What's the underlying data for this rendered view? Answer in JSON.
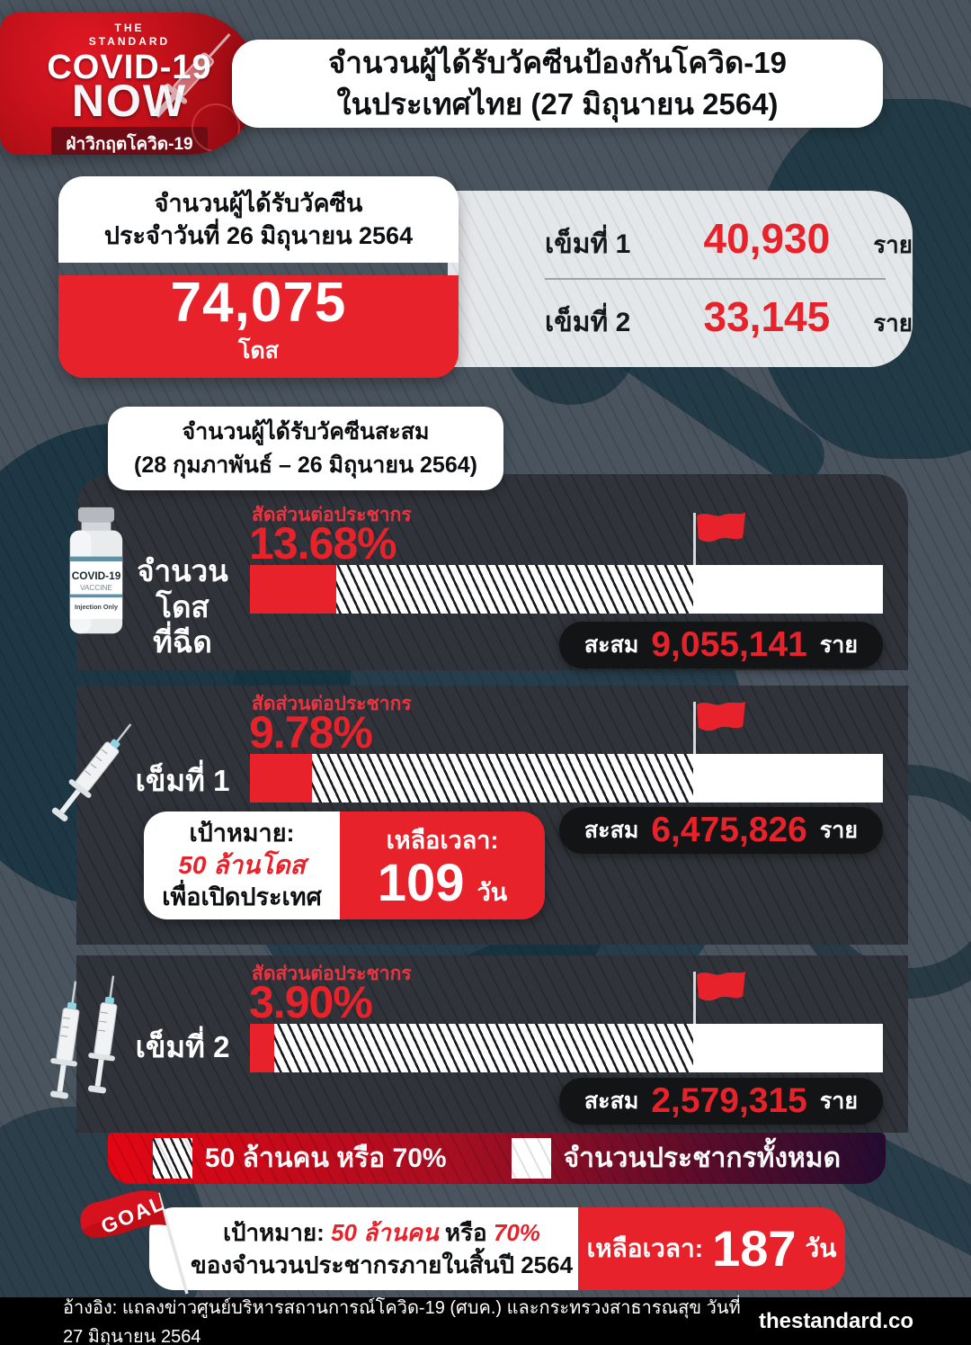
{
  "header": {
    "logo": {
      "brand_the": "THE",
      "brand_standard": "STANDARD",
      "covid": "COVID-19",
      "now": "NOW",
      "tagline": "ฝ่าวิกฤตโควิด-19"
    },
    "title_line1": "จำนวนผู้ได้รับวัคซีนป้องกันโควิด-19",
    "title_line2": "ในประเทศไทย (27 มิถุนายน 2564)"
  },
  "daily": {
    "card_title_line1": "จำนวนผู้ได้รับวัคซีน",
    "card_title_line2": "ประจำวันที่ 26 มิถุนายน 2564",
    "total_value": "74,075",
    "total_unit": "โดส",
    "doses": [
      {
        "label": "เข็มที่ 1",
        "value": "40,930",
        "unit": "ราย"
      },
      {
        "label": "เข็มที่ 2",
        "value": "33,145",
        "unit": "ราย"
      }
    ]
  },
  "cumulative": {
    "title_line1": "จำนวนผู้ได้รับวัคซีนสะสม",
    "title_line2": "(28 กุมภาพันธ์ – 26 มิถุนายน 2564)",
    "ratio_label": "สัดส่วนต่อประชากร",
    "flag_position_percent": 70,
    "rows": [
      {
        "label_line1": "จำนวนโดส",
        "label_line2": "ที่ฉีด",
        "percent_text": "13.68%",
        "percent_value": 13.68,
        "cumulative_label": "สะสม",
        "cumulative_value": "9,055,141",
        "unit": "ราย"
      },
      {
        "label_line1": "เข็มที่ 1",
        "label_line2": "",
        "percent_text": "9.78%",
        "percent_value": 9.78,
        "cumulative_label": "สะสม",
        "cumulative_value": "6,475,826",
        "unit": "ราย"
      },
      {
        "label_line1": "เข็มที่ 2",
        "label_line2": "",
        "percent_text": "3.90%",
        "percent_value": 3.9,
        "cumulative_label": "สะสม",
        "cumulative_value": "2,579,315",
        "unit": "ราย"
      }
    ],
    "goal_box": {
      "heading": "เป้าหมาย:",
      "target": "50 ล้านโดส",
      "purpose": "เพื่อเปิดประเทศ",
      "time_label": "เหลือเวลา:",
      "days": "109",
      "days_unit": "วัน"
    }
  },
  "legend": {
    "hatched_label": "50 ล้านคน หรือ 70%",
    "solid_label": "จำนวนประชากรทั้งหมด"
  },
  "goal_banner": {
    "flag_text": "GOAL",
    "line1_prefix": "เป้าหมาย:",
    "line1_target": "50 ล้านคน",
    "line1_conj": "หรือ",
    "line1_percent": "70%",
    "line2": "ของจำนวนประชากรภายในสิ้นปี 2564",
    "time_label": "เหลือเวลา:",
    "days": "187",
    "days_unit": "วัน"
  },
  "footer": {
    "source": "อ้างอิง: แถลงข่าวศูนย์บริหารสถานการณ์โควิด-19 (ศบค.) และกระทรวงสาธารณสุข วันที่ 27 มิถุนายน 2564",
    "site": "thestandard.co"
  },
  "vial_icon": {
    "line1": "COVID-19",
    "line2": "VACCINE",
    "line3": "Injection Only"
  },
  "colors": {
    "accent_red": "#e8222b",
    "deep_red": "#86090f",
    "panel_dark": "#30343a",
    "badge_black": "#131416",
    "background": "#4a545e",
    "legend_gradient_start": "#e30613",
    "legend_gradient_end": "#240b30"
  },
  "chart_data": {
    "type": "bar",
    "title": "จำนวนผู้ได้รับวัคซีนป้องกันโควิด-19 ในประเทศไทย (27 มิถุนายน 2564)",
    "subtitle": "จำนวนผู้ได้รับวัคซีนสะสม (28 กุมภาพันธ์ – 26 มิถุนายน 2564)",
    "categories": [
      "จำนวนโดสที่ฉีด",
      "เข็มที่ 1",
      "เข็มที่ 2"
    ],
    "series": [
      {
        "name": "สัดส่วนต่อประชากร (%)",
        "values": [
          13.68,
          9.78,
          3.9
        ]
      },
      {
        "name": "สะสม (ราย)",
        "values": [
          9055141,
          6475826,
          2579315
        ]
      }
    ],
    "target_marker_percent": 70,
    "xlim": [
      0,
      100
    ],
    "legend_position": "bottom",
    "legend": [
      "50 ล้านคน หรือ 70%",
      "จำนวนประชากรทั้งหมด"
    ],
    "daily_update": {
      "date": "26 มิถุนายน 2564",
      "total_doses": 74075,
      "dose1": 40930,
      "dose2": 33145
    },
    "annotations": [
      "เป้าหมาย: 50 ล้านโดส เพื่อเปิดประเทศ เหลือเวลา: 109 วัน",
      "เป้าหมาย: 50 ล้านคน หรือ 70% ของจำนวนประชากรภายในสิ้นปี 2564 เหลือเวลา: 187 วัน"
    ]
  }
}
